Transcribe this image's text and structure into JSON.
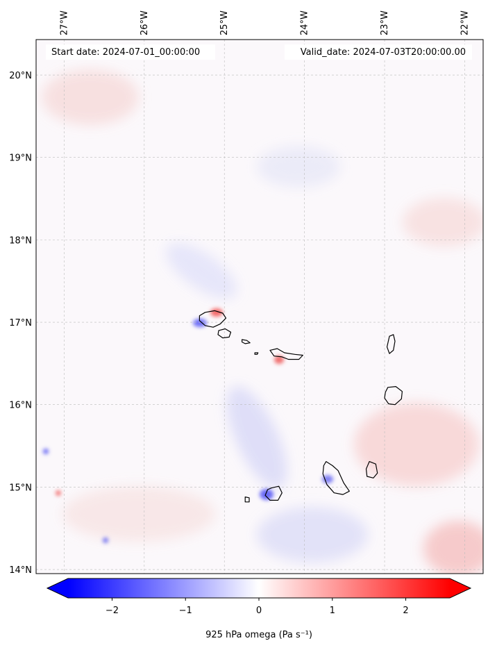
{
  "map": {
    "start_label": "Start date: 2024-07-01_00:00:00",
    "valid_label": "Valid_date: 2024-07-03T20:00:00.00",
    "lon_extent": [
      -27.35,
      -21.77
    ],
    "lat_extent": [
      13.95,
      20.43
    ],
    "lon_ticks": [
      {
        "value": -27,
        "label": "27°W"
      },
      {
        "value": -26,
        "label": "26°W"
      },
      {
        "value": -25,
        "label": "25°W"
      },
      {
        "value": -24,
        "label": "24°W"
      },
      {
        "value": -23,
        "label": "23°W"
      },
      {
        "value": -22,
        "label": "22°W"
      }
    ],
    "lat_ticks": [
      {
        "value": 20,
        "label": "20°N"
      },
      {
        "value": 19,
        "label": "19°N"
      },
      {
        "value": 18,
        "label": "18°N"
      },
      {
        "value": 17,
        "label": "17°N"
      },
      {
        "value": 16,
        "label": "16°N"
      },
      {
        "value": 15,
        "label": "15°N"
      },
      {
        "value": 14,
        "label": "14°N"
      }
    ],
    "gridlines": true,
    "coastline_color": "#000000",
    "islands": [
      {
        "name": "Santo Antão",
        "coords": [
          [
            -25.31,
            17.08
          ],
          [
            -25.24,
            17.12
          ],
          [
            -25.12,
            17.14
          ],
          [
            -25.02,
            17.11
          ],
          [
            -24.98,
            17.05
          ],
          [
            -25.05,
            16.98
          ],
          [
            -25.14,
            16.94
          ],
          [
            -25.24,
            16.96
          ],
          [
            -25.31,
            17.02
          ]
        ]
      },
      {
        "name": "São Vicente",
        "coords": [
          [
            -25.07,
            16.9
          ],
          [
            -24.99,
            16.92
          ],
          [
            -24.92,
            16.88
          ],
          [
            -24.94,
            16.82
          ],
          [
            -25.02,
            16.81
          ],
          [
            -25.08,
            16.85
          ]
        ]
      },
      {
        "name": "Santa Luzia",
        "coords": [
          [
            -24.78,
            16.79
          ],
          [
            -24.72,
            16.78
          ],
          [
            -24.68,
            16.75
          ],
          [
            -24.74,
            16.74
          ],
          [
            -24.78,
            16.76
          ]
        ]
      },
      {
        "name": "São Nicolau",
        "coords": [
          [
            -24.43,
            16.66
          ],
          [
            -24.34,
            16.68
          ],
          [
            -24.25,
            16.63
          ],
          [
            -24.12,
            16.61
          ],
          [
            -24.02,
            16.6
          ],
          [
            -24.07,
            16.55
          ],
          [
            -24.2,
            16.55
          ],
          [
            -24.28,
            16.58
          ],
          [
            -24.38,
            16.59
          ]
        ]
      },
      {
        "name": "Sal",
        "coords": [
          [
            -22.94,
            16.83
          ],
          [
            -22.89,
            16.85
          ],
          [
            -22.87,
            16.77
          ],
          [
            -22.89,
            16.66
          ],
          [
            -22.94,
            16.62
          ],
          [
            -22.97,
            16.7
          ]
        ]
      },
      {
        "name": "Boa Vista",
        "coords": [
          [
            -22.96,
            16.21
          ],
          [
            -22.86,
            16.22
          ],
          [
            -22.78,
            16.16
          ],
          [
            -22.79,
            16.07
          ],
          [
            -22.87,
            16.0
          ],
          [
            -22.95,
            16.01
          ],
          [
            -23.0,
            16.08
          ],
          [
            -22.99,
            16.15
          ]
        ]
      },
      {
        "name": "Santiago",
        "coords": [
          [
            -23.73,
            15.31
          ],
          [
            -23.65,
            15.26
          ],
          [
            -23.58,
            15.2
          ],
          [
            -23.51,
            15.05
          ],
          [
            -23.44,
            14.95
          ],
          [
            -23.52,
            14.91
          ],
          [
            -23.63,
            14.93
          ],
          [
            -23.72,
            15.03
          ],
          [
            -23.77,
            15.16
          ],
          [
            -23.76,
            15.26
          ]
        ]
      },
      {
        "name": "Maio",
        "coords": [
          [
            -23.19,
            15.31
          ],
          [
            -23.11,
            15.28
          ],
          [
            -23.09,
            15.17
          ],
          [
            -23.14,
            15.11
          ],
          [
            -23.22,
            15.13
          ],
          [
            -23.23,
            15.22
          ]
        ]
      },
      {
        "name": "Fogo",
        "coords": [
          [
            -24.41,
            14.99
          ],
          [
            -24.32,
            15.01
          ],
          [
            -24.28,
            14.93
          ],
          [
            -24.33,
            14.84
          ],
          [
            -24.43,
            14.84
          ],
          [
            -24.49,
            14.9
          ],
          [
            -24.46,
            14.97
          ]
        ]
      },
      {
        "name": "Brava",
        "coords": [
          [
            -24.74,
            14.88
          ],
          [
            -24.69,
            14.87
          ],
          [
            -24.69,
            14.82
          ],
          [
            -24.74,
            14.82
          ]
        ]
      },
      {
        "name": "Raso",
        "coords": [
          [
            -24.62,
            16.63
          ],
          [
            -24.58,
            16.63
          ],
          [
            -24.59,
            16.61
          ],
          [
            -24.62,
            16.61
          ]
        ]
      }
    ]
  },
  "colorbar": {
    "label": "925 hPa omega (Pa s⁻¹)",
    "vmin": -2.6,
    "vmax": 2.6,
    "ticks": [
      -2,
      -1,
      0,
      1,
      2
    ],
    "tick_labels": [
      "−2",
      "−1",
      "0",
      "1",
      "2"
    ],
    "cmap": "bwr",
    "low_color": "#0000ff",
    "mid_color": "#ffffff",
    "high_color": "#ff0000"
  }
}
